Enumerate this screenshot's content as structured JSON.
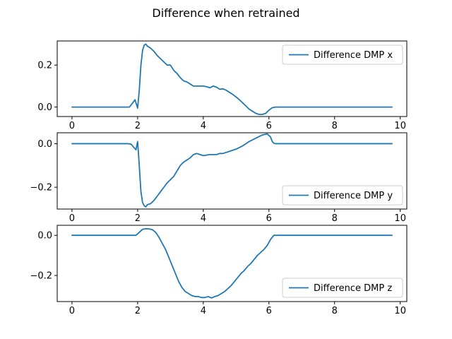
{
  "figure": {
    "title": "Difference when retrained"
  },
  "colors": {
    "line": "#1f77b4",
    "axes": "#000000",
    "legend_edge": "#cccccc"
  },
  "chart_data": [
    {
      "type": "line",
      "title": "",
      "xlabel": "",
      "ylabel": "",
      "xlim": [
        -0.45,
        10.2
      ],
      "ylim": [
        -0.045,
        0.315
      ],
      "xticks": [
        0,
        2,
        4,
        6,
        8,
        10
      ],
      "yticks": [
        0.0,
        0.2
      ],
      "ytick_labels": [
        "0.0",
        "0.2"
      ],
      "legend_position": "upper right",
      "grid": false,
      "series": [
        {
          "name": "Difference DMP x",
          "x": [
            0,
            1.75,
            1.85,
            1.92,
            2.0,
            2.05,
            2.1,
            2.15,
            2.2,
            2.25,
            2.3,
            2.4,
            2.5,
            2.6,
            2.7,
            2.8,
            2.9,
            3.0,
            3.1,
            3.2,
            3.3,
            3.4,
            3.5,
            3.6,
            3.7,
            3.8,
            3.9,
            4.0,
            4.1,
            4.2,
            4.3,
            4.4,
            4.5,
            4.6,
            4.7,
            4.8,
            4.9,
            5.0,
            5.1,
            5.2,
            5.3,
            5.4,
            5.5,
            5.6,
            5.7,
            5.8,
            5.9,
            6.0,
            6.1,
            6.2,
            6.4,
            9.75
          ],
          "y": [
            0.0,
            0.0,
            0.02,
            0.035,
            -0.005,
            0.08,
            0.2,
            0.27,
            0.295,
            0.3,
            0.29,
            0.28,
            0.265,
            0.245,
            0.23,
            0.215,
            0.2,
            0.2,
            0.175,
            0.16,
            0.14,
            0.125,
            0.12,
            0.11,
            0.1,
            0.1,
            0.1,
            0.1,
            0.097,
            0.092,
            0.1,
            0.095,
            0.085,
            0.087,
            0.08,
            0.07,
            0.06,
            0.048,
            0.035,
            0.02,
            0.005,
            -0.01,
            -0.02,
            -0.03,
            -0.035,
            -0.035,
            -0.03,
            -0.015,
            -0.003,
            0.0,
            0.0,
            0.0
          ]
        }
      ]
    },
    {
      "type": "line",
      "title": "",
      "xlabel": "",
      "ylabel": "",
      "xlim": [
        -0.45,
        10.2
      ],
      "ylim": [
        -0.3,
        0.05
      ],
      "xticks": [
        0,
        2,
        4,
        6,
        8,
        10
      ],
      "yticks": [
        0.0,
        -0.2
      ],
      "ytick_labels": [
        "0.0",
        "−0.2"
      ],
      "legend_position": "lower right",
      "grid": false,
      "series": [
        {
          "name": "Difference DMP y",
          "x": [
            0,
            1.7,
            1.8,
            1.9,
            1.95,
            2.0,
            2.05,
            2.1,
            2.15,
            2.2,
            2.25,
            2.3,
            2.4,
            2.5,
            2.6,
            2.7,
            2.8,
            2.9,
            3.0,
            3.1,
            3.2,
            3.3,
            3.4,
            3.5,
            3.6,
            3.7,
            3.8,
            3.9,
            4.0,
            4.2,
            4.4,
            4.5,
            4.6,
            4.8,
            5.0,
            5.2,
            5.4,
            5.6,
            5.8,
            5.95,
            6.05,
            6.1,
            6.15,
            6.2,
            6.4,
            9.75
          ],
          "y": [
            0.0,
            0.0,
            -0.002,
            -0.02,
            -0.028,
            0.01,
            -0.1,
            -0.22,
            -0.27,
            -0.285,
            -0.29,
            -0.28,
            -0.275,
            -0.26,
            -0.24,
            -0.22,
            -0.2,
            -0.18,
            -0.165,
            -0.15,
            -0.125,
            -0.1,
            -0.085,
            -0.075,
            -0.065,
            -0.05,
            -0.045,
            -0.05,
            -0.055,
            -0.05,
            -0.05,
            -0.045,
            -0.045,
            -0.035,
            -0.025,
            -0.01,
            0.01,
            0.025,
            0.04,
            0.045,
            0.03,
            0.01,
            0.002,
            0.0,
            0.0,
            0.0
          ]
        }
      ]
    },
    {
      "type": "line",
      "title": "",
      "xlabel": "",
      "ylabel": "",
      "xlim": [
        -0.45,
        10.2
      ],
      "ylim": [
        -0.33,
        0.05
      ],
      "xticks": [
        0,
        2,
        4,
        6,
        8,
        10
      ],
      "xtick_labels": [
        "0",
        "2",
        "4",
        "6",
        "8",
        "10"
      ],
      "yticks": [
        0.0,
        -0.2
      ],
      "ytick_labels": [
        "0.0",
        "−0.2"
      ],
      "legend_position": "lower right",
      "grid": false,
      "series": [
        {
          "name": "Difference DMP z",
          "x": [
            0,
            1.95,
            2.05,
            2.15,
            2.25,
            2.35,
            2.45,
            2.55,
            2.65,
            2.75,
            2.85,
            2.95,
            3.05,
            3.15,
            3.25,
            3.35,
            3.45,
            3.55,
            3.65,
            3.75,
            3.85,
            3.95,
            4.05,
            4.15,
            4.25,
            4.35,
            4.45,
            4.55,
            4.65,
            4.75,
            4.85,
            4.95,
            5.05,
            5.15,
            5.25,
            5.35,
            5.45,
            5.55,
            5.65,
            5.75,
            5.85,
            5.95,
            6.05,
            6.15,
            6.3,
            9.75
          ],
          "y": [
            0.0,
            0.0,
            0.015,
            0.03,
            0.033,
            0.032,
            0.028,
            0.015,
            -0.01,
            -0.04,
            -0.07,
            -0.11,
            -0.15,
            -0.19,
            -0.23,
            -0.26,
            -0.28,
            -0.29,
            -0.3,
            -0.305,
            -0.305,
            -0.31,
            -0.31,
            -0.305,
            -0.312,
            -0.305,
            -0.3,
            -0.29,
            -0.28,
            -0.265,
            -0.25,
            -0.23,
            -0.21,
            -0.19,
            -0.175,
            -0.155,
            -0.14,
            -0.12,
            -0.1,
            -0.085,
            -0.07,
            -0.05,
            -0.02,
            0.0,
            0.0,
            0.0
          ]
        }
      ]
    }
  ]
}
